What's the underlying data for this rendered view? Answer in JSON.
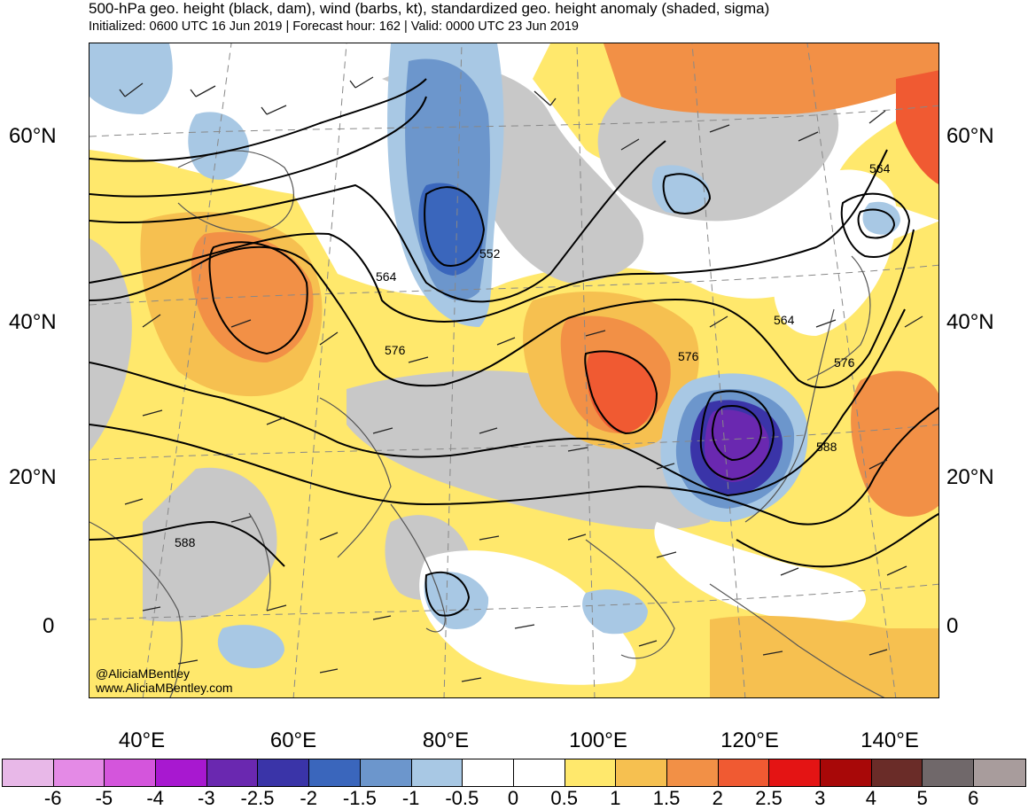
{
  "title": "500-hPa geo. height (black, dam), wind (barbs, kt), standardized geo. height anomaly (shaded, sigma)",
  "subtitle": "Initialized: 0600 UTC 16 Jun 2019 | Forecast hour: 162 | Valid: 0000 UTC 23 Jun 2019",
  "map": {
    "lat_labels": [
      "60°N",
      "40°N",
      "20°N",
      "0"
    ],
    "lon_labels": [
      "40°E",
      "60°E",
      "80°E",
      "100°E",
      "120°E",
      "140°E"
    ],
    "contour_labels": [
      "552",
      "564",
      "564",
      "564",
      "576",
      "576",
      "576",
      "588",
      "588"
    ],
    "credit_handle": "@AliciaMBentley",
    "credit_url": "www.AliciaMBentley.com"
  },
  "colorbar": {
    "labels": [
      "-6",
      "-5",
      "-4",
      "-3",
      "-2.5",
      "-2",
      "-1.5",
      "-1",
      "-0.5",
      "0",
      "0.5",
      "1",
      "1.5",
      "2",
      "2.5",
      "3",
      "4",
      "5",
      "6"
    ],
    "colors": [
      "#e8b8e8",
      "#e48ae6",
      "#d455dc",
      "#a818d0",
      "#6a28b0",
      "#3a34a8",
      "#3a66bc",
      "#6c96cc",
      "#a8c8e4",
      "#ffffff",
      "#ffffff",
      "#ffe86c",
      "#f6c050",
      "#f29046",
      "#f05a32",
      "#e41414",
      "#a80808",
      "#6a2c28",
      "#70686a",
      "#a89c9c"
    ]
  }
}
